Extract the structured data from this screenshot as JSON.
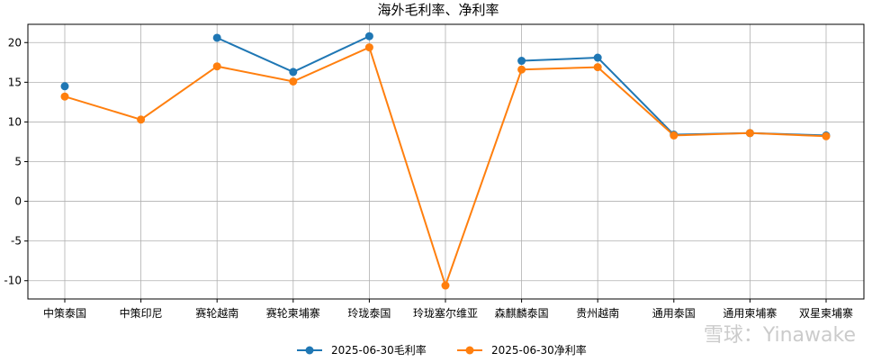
{
  "chart_data": {
    "type": "line",
    "title": "海外毛利率、净利率",
    "categories": [
      "中策泰国",
      "中策印尼",
      "赛轮越南",
      "赛轮柬埔寨",
      "玲珑泰国",
      "玲珑塞尔维亚",
      "森麒麟泰国",
      "贵州越南",
      "通用泰国",
      "通用柬埔寨",
      "双星柬埔寨"
    ],
    "series": [
      {
        "name": "2025-06-30毛利率",
        "color": "#1f77b4",
        "values": [
          14.5,
          null,
          20.6,
          16.3,
          20.8,
          null,
          17.7,
          18.1,
          8.4,
          8.6,
          8.3
        ]
      },
      {
        "name": "2025-06-30净利率",
        "color": "#ff7f0e",
        "values": [
          13.2,
          10.3,
          17.0,
          15.1,
          19.4,
          -10.6,
          16.6,
          16.9,
          8.3,
          8.6,
          8.2
        ]
      }
    ],
    "yticks": [
      -10,
      -5,
      0,
      5,
      10,
      15,
      20
    ],
    "ylim": [
      -12.3,
      22.3
    ],
    "grid": true,
    "legend": "bottom-center"
  },
  "watermark": "雪球：Yinawake"
}
